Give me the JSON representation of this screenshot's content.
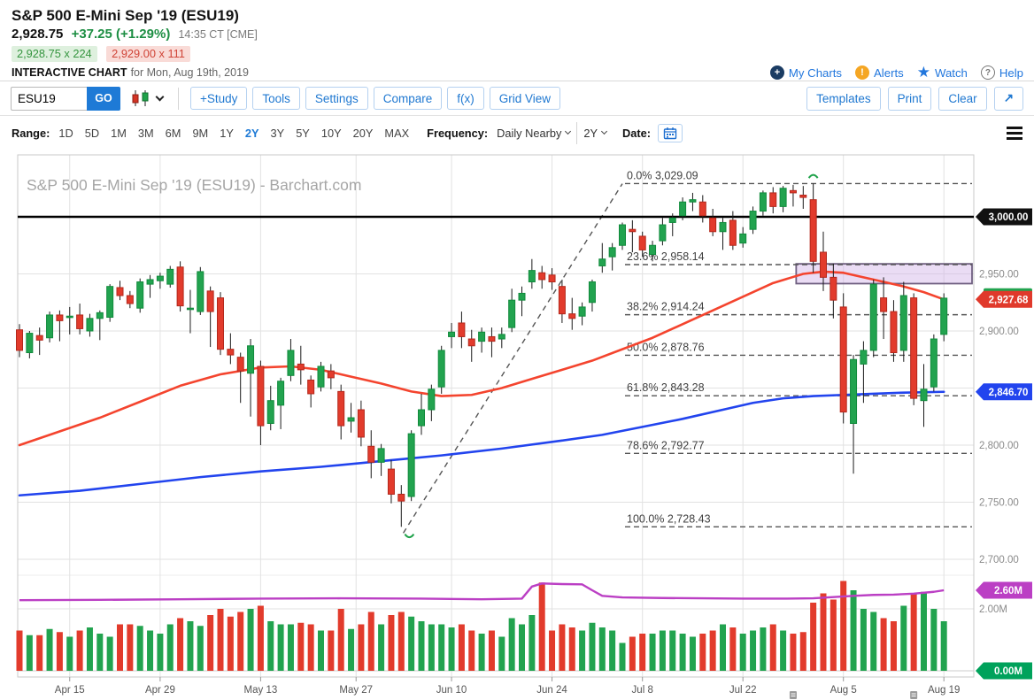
{
  "header": {
    "title": "S&P 500 E-Mini Sep '19 (ESU19)",
    "last_price": "2,928.75",
    "change": "+37.25 (+1.29%)",
    "timestamp": "14:35 CT [CME]",
    "bid": "2,928.75 x 224",
    "ask": "2,929.00 x 111",
    "page_label": "INTERACTIVE CHART",
    "page_date": "for Mon, Aug 19th, 2019",
    "links": [
      {
        "label": "My Charts",
        "icon": "plus-circle-icon"
      },
      {
        "label": "Alerts",
        "icon": "alert-icon"
      },
      {
        "label": "Watch",
        "icon": "star-icon"
      },
      {
        "label": "Help",
        "icon": "help-icon"
      }
    ]
  },
  "toolbar": {
    "symbol_value": "ESU19",
    "go_label": "GO",
    "buttons": [
      "+Study",
      "Tools",
      "Settings",
      "Compare",
      "f(x)",
      "Grid View"
    ],
    "right_buttons": [
      "Templates",
      "Print",
      "Clear"
    ],
    "expand_icon": "↗"
  },
  "controls": {
    "range_label": "Range:",
    "ranges": [
      "1D",
      "5D",
      "1M",
      "3M",
      "6M",
      "9M",
      "1Y",
      "2Y",
      "3Y",
      "5Y",
      "10Y",
      "20Y",
      "MAX"
    ],
    "selected_range": "2Y",
    "frequency_label": "Frequency:",
    "frequency_value": "Daily Nearby",
    "period_value": "2Y",
    "date_label": "Date:"
  },
  "chart_data": {
    "type": "candlestick",
    "watermark": "S&P 500 E-Mini Sep '19 (ESU19) - Barchart.com",
    "colors": {
      "up": "#22a34f",
      "up_border": "#118a3c",
      "down": "#e23b2c",
      "down_border": "#b3281c",
      "sma_fast": "#f4442e",
      "sma_slow": "#2244ee",
      "volume_avg": "#bb3fc4",
      "grid": "#e2e2e2",
      "fib": "#555555",
      "hline": "#000000",
      "zone_fill": "rgba(209,178,230,0.45)",
      "zone_border": "#6f5f80",
      "marker": "#1fa24a"
    },
    "price_axis": {
      "labels": [
        {
          "text": "2,950.00",
          "price": 2950
        },
        {
          "text": "2,900.00",
          "price": 2900
        },
        {
          "text": "2,800.00",
          "price": 2800
        },
        {
          "text": "2,750.00",
          "price": 2750
        },
        {
          "text": "2,700.00",
          "price": 2700
        }
      ],
      "grid_prices": [
        2950,
        2900,
        2850,
        2800,
        2750,
        2700
      ]
    },
    "volume_axis": {
      "labels": [
        {
          "text": "2.00M",
          "value": 2.0
        }
      ]
    },
    "badges": [
      {
        "text": "3,000.00",
        "price": 3000,
        "color": "#111111"
      },
      {
        "text": "2,927.68",
        "price": 2927.68,
        "color": "#e0392b",
        "accent_top": "#22a34f"
      },
      {
        "text": "2,846.70",
        "price": 2846.7,
        "color": "#2244ee"
      },
      {
        "text": "2.60M",
        "at": "volume_avg_end",
        "color": "#bb3fc4"
      },
      {
        "text": "0.00M",
        "value": 0,
        "color": "#00a25b"
      }
    ],
    "hline": {
      "price": 3000,
      "label": "3,000.00"
    },
    "x_ticks": [
      {
        "label": "Apr 15",
        "i": 5
      },
      {
        "label": "Apr 29",
        "i": 14
      },
      {
        "label": "May 13",
        "i": 24
      },
      {
        "label": "May 27",
        "i": 33.5
      },
      {
        "label": "Jun 10",
        "i": 43
      },
      {
        "label": "Jun 24",
        "i": 53
      },
      {
        "label": "Jul 8",
        "i": 62
      },
      {
        "label": "Jul 22",
        "i": 72
      },
      {
        "label": "Aug 5",
        "i": 82
      },
      {
        "label": "Aug 19",
        "i": 92
      }
    ],
    "axis_marker_icons": [
      {
        "i": 77
      },
      {
        "i": 89
      }
    ],
    "fibonacci": {
      "levels": [
        {
          "pct": "0.0%",
          "text": "3,029.09",
          "price": 3029.09
        },
        {
          "pct": "23.6%",
          "text": "2,958.14",
          "price": 2958.14
        },
        {
          "pct": "38.2%",
          "text": "2,914.24",
          "price": 2914.24
        },
        {
          "pct": "50.0%",
          "text": "2,878.76",
          "price": 2878.76
        },
        {
          "pct": "61.8%",
          "text": "2,843.28",
          "price": 2843.28
        },
        {
          "pct": "78.6%",
          "text": "2,792.77",
          "price": 2792.77
        },
        {
          "pct": "100.0%",
          "text": "2,728.43",
          "price": 2728.43
        }
      ]
    },
    "resistance_zone": {
      "price_top": 2958.8,
      "price_bottom": 2941.5,
      "start_i": 77.3
    },
    "trendline": {
      "from_i": 38.2,
      "from_price": 2723,
      "to_i": 60,
      "to_price": 3029
    },
    "swing_markers": [
      {
        "i": 38.8,
        "price": 2722,
        "type": "low"
      },
      {
        "i": 79,
        "price": 3034,
        "type": "high"
      }
    ],
    "sma_fast": [
      [
        0,
        2800
      ],
      [
        4,
        2812
      ],
      [
        8,
        2824
      ],
      [
        12,
        2838
      ],
      [
        16,
        2852
      ],
      [
        20,
        2862
      ],
      [
        24,
        2868
      ],
      [
        27,
        2869
      ],
      [
        30,
        2866
      ],
      [
        33,
        2860
      ],
      [
        36,
        2854
      ],
      [
        39,
        2847
      ],
      [
        42,
        2843
      ],
      [
        45,
        2844
      ],
      [
        48,
        2850
      ],
      [
        51,
        2858
      ],
      [
        54,
        2866
      ],
      [
        57,
        2874
      ],
      [
        60,
        2884
      ],
      [
        63,
        2894
      ],
      [
        66,
        2906
      ],
      [
        69,
        2918
      ],
      [
        72,
        2930
      ],
      [
        75,
        2942
      ],
      [
        78,
        2950
      ],
      [
        80,
        2952
      ],
      [
        82,
        2951
      ],
      [
        84,
        2947
      ],
      [
        86,
        2943
      ],
      [
        88,
        2939
      ],
      [
        90,
        2934
      ],
      [
        92,
        2927.68
      ]
    ],
    "sma_slow": [
      [
        0,
        2756
      ],
      [
        6,
        2760
      ],
      [
        12,
        2766
      ],
      [
        18,
        2772
      ],
      [
        24,
        2777
      ],
      [
        30,
        2781
      ],
      [
        36,
        2786
      ],
      [
        42,
        2791
      ],
      [
        48,
        2797
      ],
      [
        54,
        2804
      ],
      [
        58,
        2809
      ],
      [
        62,
        2816
      ],
      [
        66,
        2823
      ],
      [
        70,
        2831
      ],
      [
        73,
        2837
      ],
      [
        76,
        2841
      ],
      [
        79,
        2843
      ],
      [
        82,
        2844
      ],
      [
        85,
        2845
      ],
      [
        88,
        2846
      ],
      [
        92,
        2846.7
      ]
    ],
    "volume_avg": [
      [
        0,
        2.28
      ],
      [
        8,
        2.29
      ],
      [
        16,
        2.31
      ],
      [
        24,
        2.33
      ],
      [
        32,
        2.34
      ],
      [
        40,
        2.33
      ],
      [
        46,
        2.31
      ],
      [
        50,
        2.33
      ],
      [
        51,
        2.72
      ],
      [
        52,
        2.82
      ],
      [
        54,
        2.8
      ],
      [
        56,
        2.79
      ],
      [
        57,
        2.6
      ],
      [
        58,
        2.42
      ],
      [
        60,
        2.37
      ],
      [
        64,
        2.35
      ],
      [
        68,
        2.34
      ],
      [
        72,
        2.33
      ],
      [
        76,
        2.33
      ],
      [
        79,
        2.34
      ],
      [
        81,
        2.38
      ],
      [
        83,
        2.42
      ],
      [
        85,
        2.45
      ],
      [
        87,
        2.46
      ],
      [
        89,
        2.49
      ],
      [
        91,
        2.55
      ],
      [
        92,
        2.6
      ]
    ],
    "candles": {
      "dates": [
        "Apr 8",
        "Apr 9",
        "Apr 10",
        "Apr 11",
        "Apr 12",
        "Apr 15",
        "Apr 16",
        "Apr 17",
        "Apr 18",
        "Apr 22",
        "Apr 23",
        "Apr 24",
        "Apr 25",
        "Apr 26",
        "Apr 29",
        "Apr 30",
        "May 1",
        "May 2",
        "May 3",
        "May 6",
        "May 7",
        "May 8",
        "May 9",
        "May 10",
        "May 13",
        "May 14",
        "May 15",
        "May 16",
        "May 17",
        "May 20",
        "May 21",
        "May 22",
        "May 23",
        "May 24",
        "May 28",
        "May 29",
        "May 30",
        "May 31",
        "Jun 3",
        "Jun 4",
        "Jun 5",
        "Jun 6",
        "Jun 7",
        "Jun 10",
        "Jun 11",
        "Jun 12",
        "Jun 13",
        "Jun 14",
        "Jun 17",
        "Jun 18",
        "Jun 19",
        "Jun 20",
        "Jun 21",
        "Jun 24",
        "Jun 25",
        "Jun 26",
        "Jun 27",
        "Jun 28",
        "Jul 1",
        "Jul 2",
        "Jul 3",
        "Jul 5",
        "Jul 8",
        "Jul 9",
        "Jul 10",
        "Jul 11",
        "Jul 12",
        "Jul 15",
        "Jul 16",
        "Jul 17",
        "Jul 18",
        "Jul 19",
        "Jul 22",
        "Jul 23",
        "Jul 24",
        "Jul 25",
        "Jul 26",
        "Jul 29",
        "Jul 30",
        "Jul 31",
        "Aug 1",
        "Aug 2",
        "Aug 5",
        "Aug 6",
        "Aug 7",
        "Aug 8",
        "Aug 9",
        "Aug 12",
        "Aug 13",
        "Aug 14",
        "Aug 15",
        "Aug 16",
        "Aug 19"
      ],
      "open": [
        2901,
        2881,
        2896,
        2894,
        2914,
        2912,
        2914,
        2900,
        2911,
        2912,
        2938,
        2931,
        2920,
        2941,
        2944,
        2941,
        2956,
        2919,
        2917,
        2935,
        2929,
        2884,
        2877,
        2863,
        2869,
        2819,
        2835,
        2861,
        2871,
        2857,
        2851,
        2865,
        2847,
        2821,
        2831,
        2799,
        2785,
        2779,
        2757,
        2755,
        2817,
        2831,
        2851,
        2895,
        2907,
        2893,
        2891,
        2895,
        2893,
        2903,
        2927,
        2943,
        2951,
        2949,
        2939,
        2915,
        2913,
        2925,
        2957,
        2965,
        2975,
        2989,
        2983,
        2967,
        2979,
        2995,
        3001,
        3013,
        3013,
        2999,
        2987,
        2997,
        2977,
        2989,
        3005,
        3021,
        3009,
        3023,
        3019,
        3015,
        2969,
        2947,
        2921,
        2819,
        2871,
        2883,
        2929,
        2917,
        2883,
        2929,
        2839,
        2851,
        2897
      ],
      "high": [
        2906,
        2900,
        2903,
        2917,
        2918,
        2921,
        2924,
        2915,
        2918,
        2941,
        2944,
        2935,
        2946,
        2949,
        2951,
        2957,
        2961,
        2936,
        2956,
        2939,
        2934,
        2898,
        2881,
        2893,
        2874,
        2852,
        2859,
        2893,
        2887,
        2861,
        2873,
        2871,
        2853,
        2837,
        2839,
        2813,
        2801,
        2787,
        2765,
        2813,
        2845,
        2853,
        2887,
        2907,
        2917,
        2901,
        2903,
        2903,
        2903,
        2937,
        2939,
        2963,
        2957,
        2955,
        2945,
        2929,
        2925,
        2945,
        2977,
        2977,
        2995,
        2997,
        2987,
        2979,
        2999,
        3003,
        3017,
        3021,
        3019,
        3007,
        2999,
        3005,
        2991,
        3009,
        3023,
        3026,
        3027,
        3028,
        3027,
        3029.09,
        2987,
        2959,
        2933,
        2879,
        2891,
        2945,
        2947,
        2927,
        2943,
        2933,
        2871,
        2897,
        2933
      ],
      "low": [
        2877,
        2876,
        2879,
        2890,
        2891,
        2897,
        2897,
        2895,
        2892,
        2908,
        2927,
        2920,
        2916,
        2929,
        2937,
        2938,
        2917,
        2898,
        2914,
        2886,
        2879,
        2871,
        2837,
        2825,
        2800,
        2813,
        2814,
        2856,
        2853,
        2833,
        2847,
        2849,
        2805,
        2811,
        2799,
        2771,
        2773,
        2749,
        2728.43,
        2751,
        2809,
        2821,
        2845,
        2885,
        2885,
        2873,
        2881,
        2877,
        2885,
        2899,
        2913,
        2937,
        2937,
        2936,
        2907,
        2901,
        2905,
        2917,
        2951,
        2953,
        2971,
        2969,
        2965,
        2961,
        2975,
        2983,
        2997,
        3005,
        2995,
        2983,
        2971,
        2971,
        2973,
        2985,
        3001,
        3003,
        3004,
        3009,
        3007,
        2951,
        2935,
        2911,
        2819,
        2775,
        2837,
        2877,
        2893,
        2873,
        2873,
        2835,
        2816,
        2847,
        2891
      ],
      "close": [
        2883,
        2898,
        2892,
        2914,
        2909,
        2913,
        2902,
        2911,
        2916,
        2939,
        2931,
        2924,
        2943,
        2945,
        2948,
        2954,
        2922,
        2920,
        2952,
        2917,
        2884,
        2879,
        2865,
        2887,
        2817,
        2839,
        2856,
        2883,
        2866,
        2845,
        2869,
        2859,
        2817,
        2824,
        2807,
        2785,
        2797,
        2757,
        2751,
        2810,
        2831,
        2849,
        2883,
        2899,
        2895,
        2887,
        2899,
        2891,
        2897,
        2927,
        2933,
        2953,
        2945,
        2943,
        2915,
        2911,
        2921,
        2943,
        2963,
        2973,
        2993,
        2987,
        2971,
        2975,
        2993,
        2999,
        3013,
        3015,
        3001,
        2987,
        2995,
        2975,
        2985,
        3005,
        3021,
        3009,
        3025,
        3021,
        3017,
        2961,
        2947,
        2927,
        2829,
        2875,
        2883,
        2941,
        2917,
        2881,
        2931,
        2841,
        2849,
        2893,
        2928.75
      ],
      "volume": [
        1.3,
        1.15,
        1.15,
        1.35,
        1.25,
        1.1,
        1.3,
        1.4,
        1.2,
        1.1,
        1.5,
        1.5,
        1.45,
        1.3,
        1.2,
        1.5,
        1.7,
        1.6,
        1.45,
        1.8,
        2.0,
        1.75,
        1.9,
        2.0,
        2.1,
        1.6,
        1.5,
        1.5,
        1.55,
        1.5,
        1.3,
        1.3,
        2.0,
        1.35,
        1.5,
        1.9,
        1.5,
        1.8,
        1.9,
        1.75,
        1.6,
        1.5,
        1.5,
        1.4,
        1.5,
        1.3,
        1.2,
        1.3,
        1.1,
        1.7,
        1.5,
        1.8,
        2.85,
        1.3,
        1.5,
        1.4,
        1.3,
        1.55,
        1.4,
        1.3,
        0.9,
        1.1,
        1.2,
        1.2,
        1.3,
        1.3,
        1.2,
        1.1,
        1.2,
        1.3,
        1.5,
        1.4,
        1.2,
        1.3,
        1.4,
        1.5,
        1.3,
        1.2,
        1.25,
        2.2,
        2.5,
        2.3,
        2.9,
        2.6,
        2.0,
        1.9,
        1.7,
        1.6,
        2.1,
        2.5,
        2.55,
        2.0,
        1.6
      ]
    }
  }
}
